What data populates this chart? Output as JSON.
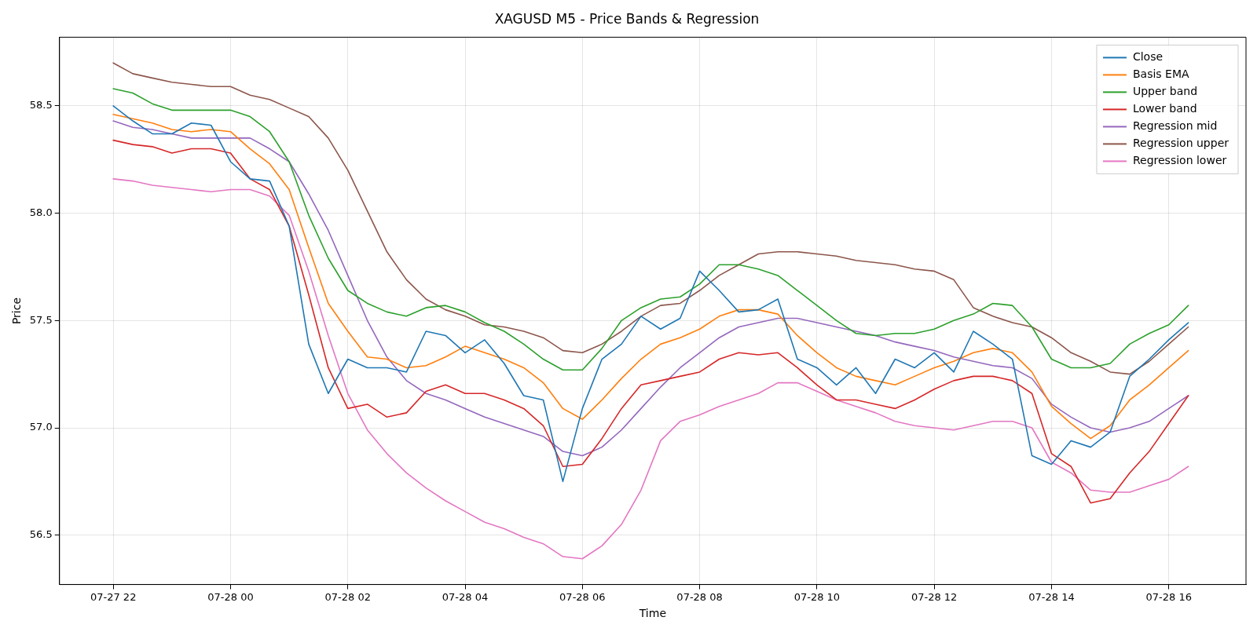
{
  "chart_data": {
    "type": "line",
    "title": "XAGUSD M5 - Price Bands & Regression",
    "xlabel": "Time",
    "ylabel": "Price",
    "x": [
      "--07-27T22:00",
      "--07-27T22:20",
      "--07-27T22:40",
      "--07-27T23:00",
      "--07-27T23:20",
      "--07-27T23:40",
      "--07-28T00:00",
      "--07-28T00:20",
      "--07-28T00:40",
      "--07-28T01:00",
      "--07-28T01:20",
      "--07-28T01:40",
      "--07-28T02:00",
      "--07-28T02:20",
      "--07-28T02:40",
      "--07-28T03:00",
      "--07-28T03:20",
      "--07-28T03:40",
      "--07-28T04:00",
      "--07-28T04:20",
      "--07-28T04:40",
      "--07-28T05:00",
      "--07-28T05:20",
      "--07-28T05:40",
      "--07-28T06:00",
      "--07-28T06:20",
      "--07-28T06:40",
      "--07-28T07:00",
      "--07-28T07:20",
      "--07-28T07:40",
      "--07-28T08:00",
      "--07-28T08:20",
      "--07-28T08:40",
      "--07-28T09:00",
      "--07-28T09:20",
      "--07-28T09:40",
      "--07-28T10:00",
      "--07-28T10:20",
      "--07-28T10:40",
      "--07-28T11:00",
      "--07-28T11:20",
      "--07-28T11:40",
      "--07-28T12:00",
      "--07-28T12:20",
      "--07-28T12:40",
      "--07-28T13:00",
      "--07-28T13:20",
      "--07-28T13:40",
      "--07-28T14:00",
      "--07-28T14:20",
      "--07-28T14:40",
      "--07-28T15:00",
      "--07-28T15:20",
      "--07-28T15:40",
      "--07-28T16:00",
      "--07-28T16:20"
    ],
    "series": [
      {
        "name": "Close",
        "color": "#1f77b4",
        "values": [
          58.5,
          58.43,
          58.37,
          58.37,
          58.42,
          58.41,
          58.24,
          58.16,
          58.15,
          57.94,
          57.39,
          57.16,
          57.32,
          57.28,
          57.28,
          57.26,
          57.45,
          57.43,
          57.35,
          57.41,
          57.3,
          57.15,
          57.13,
          56.75,
          57.09,
          57.32,
          57.39,
          57.52,
          57.46,
          57.51,
          57.73,
          57.64,
          57.54,
          57.55,
          57.6,
          57.32,
          57.28,
          57.2,
          57.28,
          57.16,
          57.32,
          57.28,
          57.35,
          57.26,
          57.45,
          57.39,
          57.32,
          56.87,
          56.83,
          56.94,
          56.91,
          56.98,
          57.24,
          57.32,
          57.41,
          57.49
        ]
      },
      {
        "name": "Basis EMA",
        "color": "#ff7f0e",
        "values": [
          58.46,
          58.44,
          58.42,
          58.39,
          58.38,
          58.39,
          58.38,
          58.3,
          58.23,
          58.11,
          57.84,
          57.58,
          57.45,
          57.33,
          57.32,
          57.28,
          57.29,
          57.33,
          57.38,
          57.35,
          57.32,
          57.28,
          57.21,
          57.09,
          57.04,
          57.13,
          57.23,
          57.32,
          57.39,
          57.42,
          57.46,
          57.52,
          57.55,
          57.55,
          57.53,
          57.43,
          57.35,
          57.28,
          57.24,
          57.22,
          57.2,
          57.24,
          57.28,
          57.31,
          57.35,
          57.37,
          57.35,
          57.26,
          57.1,
          57.02,
          56.95,
          57.01,
          57.13,
          57.2,
          57.28,
          57.36
        ]
      },
      {
        "name": "Upper band",
        "color": "#2ca02c",
        "values": [
          58.58,
          58.56,
          58.51,
          58.48,
          58.48,
          58.48,
          58.48,
          58.45,
          58.38,
          58.24,
          57.99,
          57.79,
          57.64,
          57.58,
          57.54,
          57.52,
          57.56,
          57.57,
          57.54,
          57.49,
          57.45,
          57.39,
          57.32,
          57.27,
          57.27,
          57.37,
          57.5,
          57.56,
          57.6,
          57.61,
          57.67,
          57.76,
          57.76,
          57.74,
          57.71,
          57.64,
          57.57,
          57.5,
          57.44,
          57.43,
          57.44,
          57.44,
          57.46,
          57.5,
          57.53,
          57.58,
          57.57,
          57.47,
          57.32,
          57.28,
          57.28,
          57.3,
          57.39,
          57.44,
          57.48,
          57.57
        ]
      },
      {
        "name": "Lower band",
        "color": "#d62728",
        "values": [
          58.34,
          58.32,
          58.31,
          58.28,
          58.3,
          58.3,
          58.28,
          58.16,
          58.11,
          57.94,
          57.62,
          57.28,
          57.09,
          57.11,
          57.05,
          57.07,
          57.17,
          57.2,
          57.16,
          57.16,
          57.13,
          57.09,
          57.01,
          56.82,
          56.83,
          56.95,
          57.09,
          57.2,
          57.22,
          57.24,
          57.26,
          57.32,
          57.35,
          57.34,
          57.35,
          57.28,
          57.2,
          57.13,
          57.13,
          57.11,
          57.09,
          57.13,
          57.18,
          57.22,
          57.24,
          57.24,
          57.22,
          57.16,
          56.88,
          56.82,
          56.65,
          56.67,
          56.79,
          56.89,
          57.02,
          57.15
        ]
      },
      {
        "name": "Regression mid",
        "color": "#9467bd",
        "values": [
          58.43,
          58.4,
          58.39,
          58.37,
          58.35,
          58.35,
          58.35,
          58.35,
          58.3,
          58.24,
          58.09,
          57.92,
          57.71,
          57.5,
          57.33,
          57.22,
          57.16,
          57.13,
          57.09,
          57.05,
          57.02,
          56.99,
          56.96,
          56.89,
          56.87,
          56.91,
          56.99,
          57.09,
          57.19,
          57.28,
          57.35,
          57.42,
          57.47,
          57.49,
          57.51,
          57.51,
          57.49,
          57.47,
          57.45,
          57.43,
          57.4,
          57.38,
          57.36,
          57.33,
          57.31,
          57.29,
          57.28,
          57.23,
          57.11,
          57.05,
          57.0,
          56.98,
          57.0,
          57.03,
          57.09,
          57.15
        ]
      },
      {
        "name": "Regression upper",
        "color": "#8c564b",
        "values": [
          58.7,
          58.65,
          58.63,
          58.61,
          58.6,
          58.59,
          58.59,
          58.55,
          58.53,
          58.49,
          58.45,
          58.35,
          58.2,
          58.01,
          57.82,
          57.69,
          57.6,
          57.55,
          57.52,
          57.48,
          57.47,
          57.45,
          57.42,
          57.36,
          57.35,
          57.39,
          57.45,
          57.52,
          57.57,
          57.58,
          57.64,
          57.71,
          57.76,
          57.81,
          57.82,
          57.82,
          57.81,
          57.8,
          57.78,
          57.77,
          57.76,
          57.74,
          57.73,
          57.69,
          57.56,
          57.52,
          57.49,
          57.47,
          57.42,
          57.35,
          57.31,
          57.26,
          57.25,
          57.31,
          57.39,
          57.47
        ]
      },
      {
        "name": "Regression lower",
        "color": "#e377c2",
        "values": [
          58.16,
          58.15,
          58.13,
          58.12,
          58.11,
          58.1,
          58.11,
          58.11,
          58.08,
          57.99,
          57.73,
          57.43,
          57.16,
          56.99,
          56.88,
          56.79,
          56.72,
          56.66,
          56.61,
          56.56,
          56.53,
          56.49,
          56.46,
          56.4,
          56.39,
          56.45,
          56.55,
          56.71,
          56.94,
          57.03,
          57.06,
          57.1,
          57.13,
          57.16,
          57.21,
          57.21,
          57.17,
          57.13,
          57.1,
          57.07,
          57.03,
          57.01,
          57.0,
          56.99,
          57.01,
          57.03,
          57.03,
          57.0,
          56.84,
          56.79,
          56.71,
          56.7,
          56.7,
          56.73,
          56.76,
          56.82
        ]
      }
    ],
    "xlim": [
      "--07-27T21:05",
      "--07-28T17:19"
    ],
    "xticks": [
      {
        "value": "--07-27T22:00",
        "label": "07-27 22"
      },
      {
        "value": "--07-28T00:00",
        "label": "07-28 00"
      },
      {
        "value": "--07-28T02:00",
        "label": "07-28 02"
      },
      {
        "value": "--07-28T04:00",
        "label": "07-28 04"
      },
      {
        "value": "--07-28T06:00",
        "label": "07-28 06"
      },
      {
        "value": "--07-28T08:00",
        "label": "07-28 08"
      },
      {
        "value": "--07-28T10:00",
        "label": "07-28 10"
      },
      {
        "value": "--07-28T12:00",
        "label": "07-28 12"
      },
      {
        "value": "--07-28T14:00",
        "label": "07-28 14"
      },
      {
        "value": "--07-28T16:00",
        "label": "07-28 16"
      }
    ],
    "ylim": [
      56.27,
      58.82
    ],
    "yticks": [
      {
        "value": 56.5,
        "label": "56.5"
      },
      {
        "value": 57,
        "label": "57.0"
      },
      {
        "value": 57.5,
        "label": "57.5"
      },
      {
        "value": 58,
        "label": "58.0"
      },
      {
        "value": 58.5,
        "label": "58.5"
      }
    ],
    "grid": true,
    "legend": "top right",
    "marker": "none",
    "line_style": "solid"
  }
}
